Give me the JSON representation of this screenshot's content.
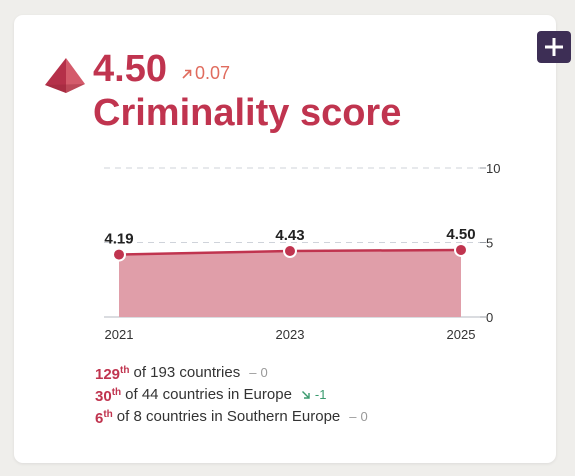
{
  "header": {
    "score": "4.50",
    "change": "0.07",
    "title": "Criminality score"
  },
  "colors": {
    "accent": "#c0344f",
    "change_up": "#e06c5e",
    "area_fill": "#e09ea9",
    "button_bg": "#3d2e55",
    "delta_down": "#3a9a6e"
  },
  "icons": {
    "score_icon": "pyramid-icon",
    "change_icon": "arrow-up-right-icon",
    "add_button_icon": "plus-icon"
  },
  "chart_data": {
    "type": "area",
    "x": [
      "2021",
      "2023",
      "2025"
    ],
    "values": [
      4.19,
      4.43,
      4.5
    ],
    "data_labels": [
      "4.19",
      "4.43",
      "4.50"
    ],
    "ylim": [
      0,
      10
    ],
    "yticks": [
      "0",
      "5",
      "10"
    ],
    "grid": "dashed at 5 and 10",
    "yaxis_position": "right"
  },
  "rankings": [
    {
      "rank": "129",
      "suffix": "th",
      "text": "of 193 countries",
      "delta": "0",
      "trend": "neutral"
    },
    {
      "rank": "30",
      "suffix": "th",
      "text": "of 44 countries in Europe",
      "delta": "-1",
      "trend": "down"
    },
    {
      "rank": "6",
      "suffix": "th",
      "text": "of 8 countries in Southern Europe",
      "delta": "0",
      "trend": "neutral"
    }
  ]
}
